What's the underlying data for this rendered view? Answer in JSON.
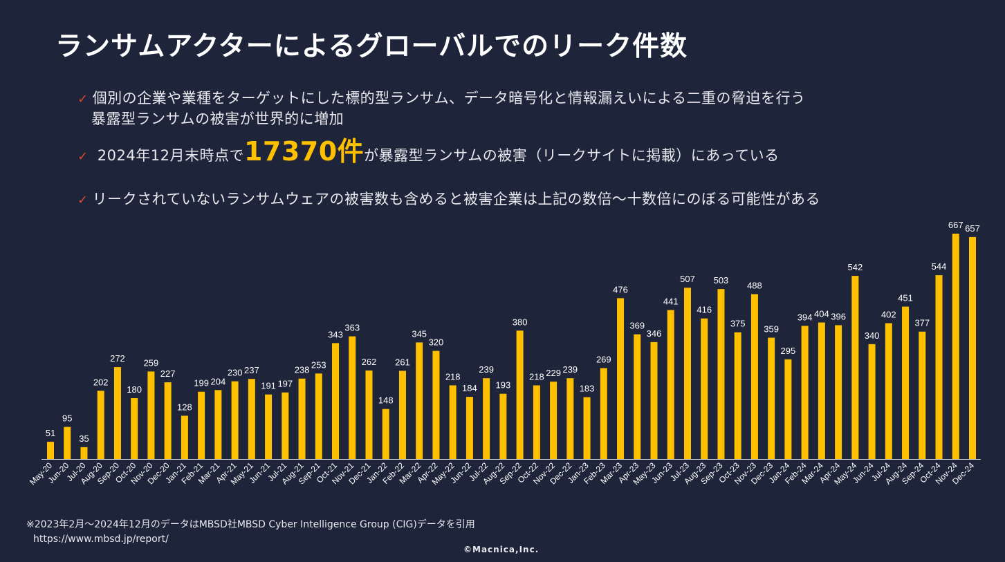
{
  "title": "ランサムアクターによるグローバルでのリーク件数",
  "bullets": {
    "b1_line1": "個別の企業や業種をターゲットにした標的型ランサム、データ暗号化と情報漏えいによる二重の脅迫を行う",
    "b1_line2": "暴露型ランサムの被害が世界的に増加",
    "b2_pre": "2024年12月末時点で",
    "b2_highlight": "17370件",
    "b2_post": "が暴露型ランサムの被害（リークサイトに掲載）にあっている",
    "b3": "リークされていないランサムウェアの被害数も含めると被害企業は上記の数倍～十数倍にのぼる可能性がある",
    "check_icon": "✓"
  },
  "footer": {
    "source": "※2023年2月～2024年12月のデータはMBSD社MBSD Cyber Intelligence Group (CIG)データを引用",
    "url": "https://www.mbsd.jp/report/",
    "copyright": "©Macnica,Inc."
  },
  "colors": {
    "background": "#1e253a",
    "bar": "#ffc000",
    "check": "#d9472b",
    "highlight": "#ffc000"
  },
  "chart_data": {
    "type": "bar",
    "categories": [
      "May-20",
      "Jun-20",
      "Jul-20",
      "Aug-20",
      "Sep-20",
      "Oct-20",
      "Nov-20",
      "Dec-20",
      "Jan-21",
      "Feb-21",
      "Mar-21",
      "Apr-21",
      "May-21",
      "Jun-21",
      "Jul-21",
      "Aug-21",
      "Sep-21",
      "Oct-21",
      "Nov-21",
      "Dec-21",
      "Jan-22",
      "Feb-22",
      "Mar-22",
      "Apr-22",
      "May-22",
      "Jun-22",
      "Jul-22",
      "Aug-22",
      "Sep-22",
      "Oct-22",
      "Nov-22",
      "Dec-22",
      "Jan-23",
      "Feb-23",
      "Mar-23",
      "Apr-23",
      "May-23",
      "Jun-23",
      "Jul-23",
      "Aug-23",
      "Sep-23",
      "Oct-23",
      "Nov-23",
      "Dec-23",
      "Jan-24",
      "Feb-24",
      "Mar-24",
      "Apr-24",
      "May-24",
      "Jun-24",
      "Jul-24",
      "Aug-24",
      "Sep-24",
      "Oct-24",
      "Nov-24",
      "Dec-24"
    ],
    "values": [
      51,
      95,
      35,
      202,
      272,
      180,
      259,
      227,
      128,
      199,
      204,
      230,
      237,
      191,
      197,
      238,
      253,
      343,
      363,
      262,
      148,
      261,
      345,
      320,
      218,
      184,
      239,
      193,
      380,
      218,
      229,
      239,
      183,
      269,
      476,
      369,
      346,
      441,
      507,
      416,
      503,
      375,
      488,
      359,
      295,
      394,
      404,
      396,
      542,
      340,
      402,
      451,
      377,
      544,
      667,
      657
    ],
    "ylim": [
      0,
      667
    ],
    "grid": false,
    "data_labels": true
  }
}
